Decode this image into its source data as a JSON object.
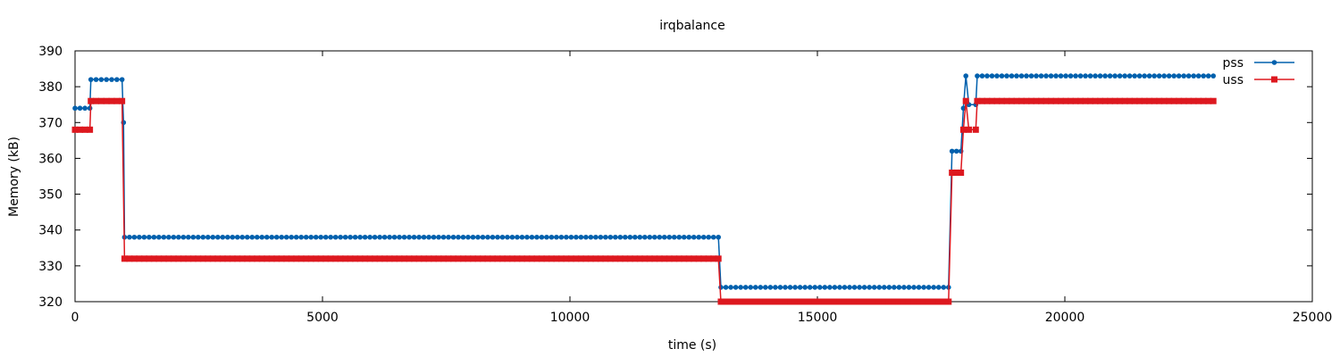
{
  "chart_data": {
    "type": "line",
    "title": "irqbalance",
    "xlabel": "time (s)",
    "ylabel": "Memory (kB)",
    "xlim": [
      0,
      25000
    ],
    "ylim": [
      320,
      390
    ],
    "x_ticks": [
      0,
      5000,
      10000,
      15000,
      20000,
      25000
    ],
    "y_ticks": [
      320,
      330,
      340,
      350,
      360,
      370,
      380,
      390
    ],
    "grid": false,
    "legend_position": "top-right",
    "series": [
      {
        "name": "pss",
        "color": "#0060ad",
        "marker": "circle",
        "points": [
          [
            0,
            374
          ],
          [
            300,
            374
          ],
          [
            320,
            382
          ],
          [
            950,
            382
          ],
          [
            980,
            370
          ],
          [
            1000,
            338
          ],
          [
            13000,
            338
          ],
          [
            13050,
            324
          ],
          [
            17650,
            324
          ],
          [
            17720,
            362
          ],
          [
            17900,
            362
          ],
          [
            17950,
            374
          ],
          [
            18000,
            383
          ],
          [
            18060,
            375
          ],
          [
            18200,
            375
          ],
          [
            18230,
            383
          ],
          [
            23000,
            383
          ]
        ]
      },
      {
        "name": "uss",
        "color": "#dd181f",
        "marker": "square",
        "points": [
          [
            0,
            368
          ],
          [
            300,
            368
          ],
          [
            320,
            376
          ],
          [
            950,
            376
          ],
          [
            1000,
            332
          ],
          [
            13000,
            332
          ],
          [
            13050,
            320
          ],
          [
            17650,
            320
          ],
          [
            17720,
            356
          ],
          [
            17900,
            356
          ],
          [
            17950,
            368
          ],
          [
            18000,
            376
          ],
          [
            18060,
            368
          ],
          [
            18200,
            368
          ],
          [
            18230,
            376
          ],
          [
            23000,
            376
          ]
        ]
      }
    ]
  }
}
